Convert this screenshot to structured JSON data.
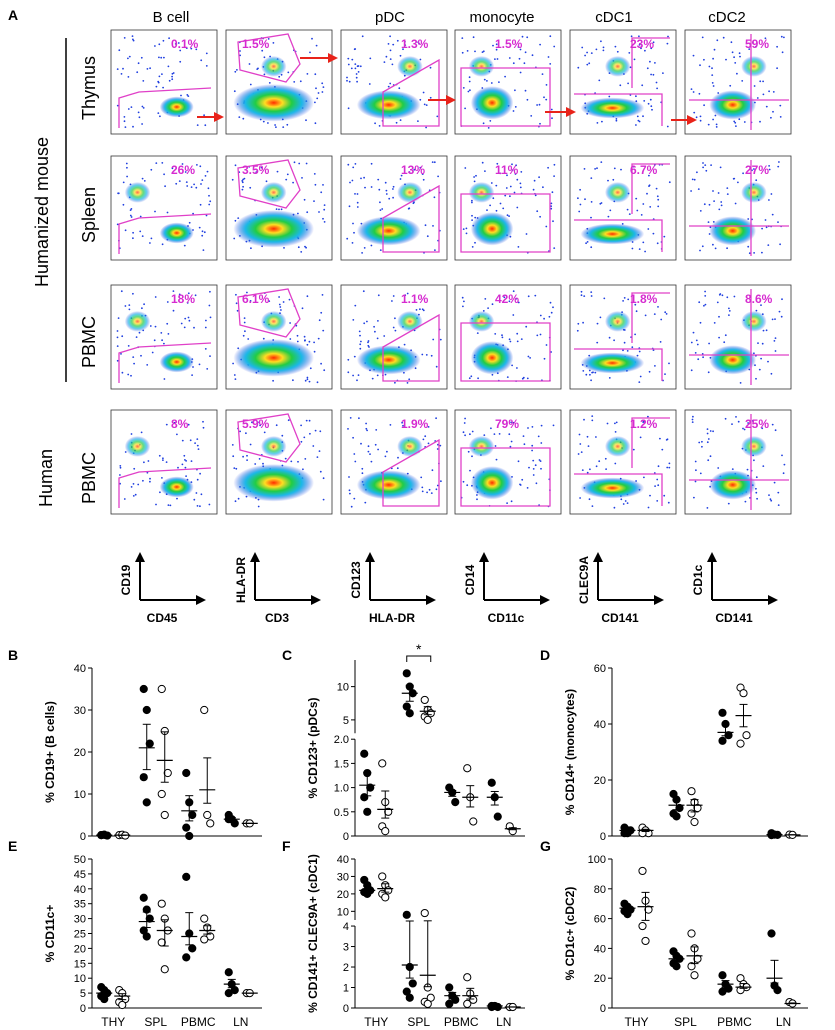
{
  "panel_a": {
    "letter": "A",
    "columns": [
      "B cell",
      "",
      "pDC",
      "monocyte",
      "cDC1",
      "cDC2"
    ],
    "group_label": "Humanized mouse",
    "rows": [
      {
        "label": "Thymus",
        "percents": [
          "0.1%",
          "1.5%",
          "1.3%",
          "1.5%",
          "23%",
          "59%"
        ]
      },
      {
        "label": "Spleen",
        "percents": [
          "26%",
          "3.5%",
          "13%",
          "11%",
          "6.7%",
          "27%"
        ]
      },
      {
        "label": "PBMC",
        "percents": [
          "18%",
          "6.1%",
          "1.1%",
          "42%",
          "1.8%",
          "8.6%"
        ]
      },
      {
        "label": "PBMC",
        "sublabel": "Human",
        "percents": [
          "8%",
          "5.9%",
          "1.9%",
          "79%",
          "1.2%",
          "25%"
        ]
      }
    ],
    "axes": [
      {
        "y": "CD19",
        "x": "CD45"
      },
      {
        "y": "HLA-DR",
        "x": "CD3"
      },
      {
        "y": "CD123",
        "x": "HLA-DR"
      },
      {
        "y": "CD14",
        "x": "CD11c"
      },
      {
        "y": "CLEC9A",
        "x": "CD141"
      },
      {
        "y": "CD1c",
        "x": "CD141"
      }
    ],
    "colors": {
      "gate": "#e040c8",
      "arrow": "#e8231a",
      "percent": "#d62bd0",
      "dot": "#1f3fe0",
      "hot": "#ffdd22",
      "core": "#22cc44"
    }
  },
  "chart_data": [
    {
      "type": "scatter",
      "letter": "B",
      "ylabel": "% CD19+ (B cells)",
      "ylim": [
        0,
        40
      ],
      "ticks": [
        0,
        10,
        20,
        30,
        40
      ],
      "categories": [
        "THY",
        "SPL",
        "PBMC",
        "LN"
      ],
      "show_xlabels": false,
      "series": [
        {
          "name": "Humanized mouse",
          "fill": "filled",
          "groups": [
            [
              0.2,
              0.3,
              0.1,
              0.2,
              0.3
            ],
            [
              35,
              30,
              22,
              14,
              8
            ],
            [
              15,
              8,
              5,
              2,
              0
            ],
            [
              5,
              4,
              3,
              4
            ]
          ],
          "means": [
            0.2,
            21,
            6,
            4
          ]
        },
        {
          "name": "Human",
          "fill": "open",
          "groups": [
            [
              0.2,
              0.3,
              0.1
            ],
            [
              35,
              25,
              15,
              10,
              5
            ],
            [
              30,
              5,
              3
            ],
            [
              3,
              3
            ]
          ],
          "means": [
            0.2,
            18,
            11,
            3
          ]
        }
      ]
    },
    {
      "type": "scatter",
      "letter": "C",
      "ylabel": "% CD123+ (pDCs)",
      "broken": true,
      "lower": {
        "lim": [
          0,
          2.0
        ],
        "ticks": [
          0,
          0.5,
          1.0,
          1.5,
          2.0
        ],
        "labels": [
          "0",
          "0.5",
          "1.0",
          "1.5",
          "2.0"
        ]
      },
      "upper": {
        "lim": [
          3,
          14
        ],
        "ticks": [
          5,
          10
        ],
        "labels": [
          "5",
          "10"
        ]
      },
      "categories": [
        "THY",
        "SPL",
        "PBMC",
        "LN"
      ],
      "show_xlabels": false,
      "annotation": "*",
      "series": [
        {
          "name": "Humanized mouse",
          "fill": "filled",
          "groups": [
            [
              1.7,
              1.3,
              1.0,
              0.8,
              0.5
            ],
            [
              12,
              10,
              9,
              7,
              6
            ],
            [
              1.0,
              0.9,
              0.7
            ],
            [
              1.1,
              0.8,
              0.4
            ]
          ],
          "means": [
            1.05,
            9,
            0.9,
            0.8
          ]
        },
        {
          "name": "Human",
          "fill": "open",
          "groups": [
            [
              1.5,
              0.7,
              0.5,
              0.2,
              0.1
            ],
            [
              8,
              6.5,
              6,
              5.5,
              5
            ],
            [
              1.4,
              0.8,
              0.3
            ],
            [
              0.2,
              0.1
            ]
          ],
          "means": [
            0.55,
            6.3,
            0.8,
            0.15
          ]
        }
      ]
    },
    {
      "type": "scatter",
      "letter": "D",
      "ylabel": "% CD14+ (monocytes)",
      "ylim": [
        0,
        60
      ],
      "ticks": [
        0,
        20,
        40,
        60
      ],
      "categories": [
        "THY",
        "SPL",
        "PBMC",
        "LN"
      ],
      "show_xlabels": false,
      "series": [
        {
          "name": "Humanized mouse",
          "fill": "filled",
          "groups": [
            [
              3,
              2,
              2,
              1,
              1
            ],
            [
              15,
              13,
              10,
              8,
              7
            ],
            [
              44,
              40,
              36,
              34
            ],
            [
              1,
              0.5,
              0.4,
              0.3
            ]
          ],
          "means": [
            2,
            11,
            37,
            0.5
          ]
        },
        {
          "name": "Human",
          "fill": "open",
          "groups": [
            [
              3,
              2,
              1,
              1
            ],
            [
              16,
              12,
              10,
              8,
              5
            ],
            [
              53,
              51,
              36,
              33
            ],
            [
              0.5,
              0.4
            ]
          ],
          "means": [
            2,
            11,
            43,
            0.4
          ]
        }
      ]
    },
    {
      "type": "scatter",
      "letter": "E",
      "ylabel": "% CD11c+",
      "ylim": [
        0,
        50
      ],
      "ticks": [
        0,
        5,
        10,
        15,
        20,
        25,
        30,
        35,
        40,
        45,
        50
      ],
      "categories": [
        "THY",
        "SPL",
        "PBMC",
        "LN"
      ],
      "show_xlabels": true,
      "series": [
        {
          "name": "Humanized mouse",
          "fill": "filled",
          "groups": [
            [
              7,
              6,
              5,
              4,
              3
            ],
            [
              37,
              33,
              30,
              26,
              24
            ],
            [
              44,
              25,
              20,
              17
            ],
            [
              12,
              8,
              6,
              5
            ]
          ],
          "means": [
            5,
            29,
            24,
            8
          ]
        },
        {
          "name": "Human",
          "fill": "open",
          "groups": [
            [
              6,
              5,
              3,
              2,
              1
            ],
            [
              35,
              30,
              26,
              22,
              13
            ],
            [
              30,
              27,
              24,
              23
            ],
            [
              5,
              5
            ]
          ],
          "means": [
            4,
            26,
            26,
            5
          ]
        }
      ]
    },
    {
      "type": "scatter",
      "letter": "F",
      "ylabel": "% CD141+ CLEC9A+ (cDC1)",
      "broken": true,
      "lower": {
        "lim": [
          0,
          4
        ],
        "ticks": [
          0,
          1,
          2,
          3,
          4
        ],
        "labels": [
          "0",
          "1",
          "2",
          "3",
          "4"
        ]
      },
      "upper": {
        "lim": [
          5,
          40
        ],
        "ticks": [
          10,
          20,
          30,
          40
        ],
        "labels": [
          "10",
          "20",
          "30",
          "40"
        ]
      },
      "categories": [
        "THY",
        "SPL",
        "PBMC",
        "LN"
      ],
      "show_xlabels": true,
      "series": [
        {
          "name": "Humanized mouse",
          "fill": "filled",
          "groups": [
            [
              28,
              25,
              22,
              21,
              20
            ],
            [
              8,
              2,
              1.2,
              0.8,
              0.5
            ],
            [
              1,
              0.6,
              0.4,
              0.2
            ],
            [
              0.1,
              0.1,
              0.05,
              0.05
            ]
          ],
          "means": [
            22,
            2.1,
            0.6,
            0.1
          ]
        },
        {
          "name": "Human",
          "fill": "open",
          "groups": [
            [
              30,
              25,
              22,
              20,
              18
            ],
            [
              9,
              1,
              0.5,
              0.3,
              0.2
            ],
            [
              1.5,
              0.7,
              0.4,
              0.2
            ],
            [
              0.05,
              0.05
            ]
          ],
          "means": [
            23,
            1.6,
            0.6,
            0.05
          ]
        }
      ]
    },
    {
      "type": "scatter",
      "letter": "G",
      "ylabel": "% CD1c+ (cDC2)",
      "ylim": [
        0,
        100
      ],
      "ticks": [
        0,
        20,
        40,
        60,
        80,
        100
      ],
      "categories": [
        "THY",
        "SPL",
        "PBMC",
        "LN"
      ],
      "show_xlabels": true,
      "series": [
        {
          "name": "Humanized mouse",
          "fill": "filled",
          "groups": [
            [
              70,
              68,
              66,
              65,
              63
            ],
            [
              38,
              35,
              33,
              30,
              28
            ],
            [
              22,
              16,
              13,
              11
            ],
            [
              50,
              15,
              12
            ]
          ],
          "means": [
            67,
            33,
            16,
            20
          ]
        },
        {
          "name": "Human",
          "fill": "open",
          "groups": [
            [
              92,
              72,
              66,
              55,
              45
            ],
            [
              50,
              40,
              33,
              28,
              22
            ],
            [
              20,
              16,
              14,
              12
            ],
            [
              4,
              3
            ]
          ],
          "means": [
            68,
            35,
            14,
            3
          ]
        }
      ]
    }
  ]
}
